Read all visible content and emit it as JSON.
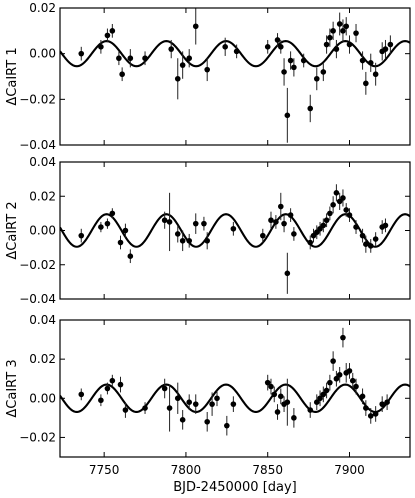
{
  "chart_data": [
    {
      "type": "scatter",
      "ylabel": "ΔCaIRT 1",
      "xlim": [
        7723,
        7937
      ],
      "ylim": [
        -0.04,
        0.02
      ],
      "yticks": [
        -0.04,
        -0.02,
        0.0,
        0.02
      ],
      "yticklabels": [
        "−0.04",
        "−0.02",
        "0.00",
        "0.02"
      ],
      "model": {
        "amplitude": 0.0055,
        "period": 36.5,
        "phase_peak": 7788
      },
      "series": [
        {
          "points": [
            {
              "x": 7736,
              "y": 0.0,
              "err": 0.003
            },
            {
              "x": 7748,
              "y": 0.003,
              "err": 0.003
            },
            {
              "x": 7752,
              "y": 0.008,
              "err": 0.003
            },
            {
              "x": 7755,
              "y": 0.01,
              "err": 0.003
            },
            {
              "x": 7759,
              "y": -0.002,
              "err": 0.003
            },
            {
              "x": 7761,
              "y": -0.009,
              "err": 0.003
            },
            {
              "x": 7766,
              "y": -0.002,
              "err": 0.004
            },
            {
              "x": 7775,
              "y": -0.002,
              "err": 0.003
            },
            {
              "x": 7791,
              "y": 0.002,
              "err": 0.004
            },
            {
              "x": 7795,
              "y": -0.011,
              "err": 0.009
            },
            {
              "x": 7798,
              "y": -0.005,
              "err": 0.006
            },
            {
              "x": 7802,
              "y": -0.002,
              "err": 0.004
            },
            {
              "x": 7806,
              "y": 0.012,
              "err": 0.008
            },
            {
              "x": 7813,
              "y": -0.007,
              "err": 0.005
            },
            {
              "x": 7824,
              "y": 0.003,
              "err": 0.004
            },
            {
              "x": 7831,
              "y": 0.001,
              "err": 0.003
            },
            {
              "x": 7850,
              "y": 0.003,
              "err": 0.003
            },
            {
              "x": 7856,
              "y": 0.006,
              "err": 0.003
            },
            {
              "x": 7858,
              "y": 0.003,
              "err": 0.003
            },
            {
              "x": 7860,
              "y": -0.008,
              "err": 0.006
            },
            {
              "x": 7862,
              "y": -0.027,
              "err": 0.012
            },
            {
              "x": 7864,
              "y": -0.003,
              "err": 0.004
            },
            {
              "x": 7866,
              "y": -0.006,
              "err": 0.004
            },
            {
              "x": 7872,
              "y": -0.003,
              "err": 0.003
            },
            {
              "x": 7876,
              "y": -0.024,
              "err": 0.006
            },
            {
              "x": 7880,
              "y": -0.011,
              "err": 0.005
            },
            {
              "x": 7884,
              "y": -0.008,
              "err": 0.004
            },
            {
              "x": 7886,
              "y": 0.004,
              "err": 0.004
            },
            {
              "x": 7888,
              "y": 0.007,
              "err": 0.004
            },
            {
              "x": 7890,
              "y": 0.01,
              "err": 0.004
            },
            {
              "x": 7892,
              "y": 0.002,
              "err": 0.004
            },
            {
              "x": 7894,
              "y": 0.013,
              "err": 0.005
            },
            {
              "x": 7896,
              "y": 0.01,
              "err": 0.005
            },
            {
              "x": 7898,
              "y": 0.012,
              "err": 0.004
            },
            {
              "x": 7900,
              "y": 0.004,
              "err": 0.004
            },
            {
              "x": 7904,
              "y": 0.009,
              "err": 0.004
            },
            {
              "x": 7908,
              "y": -0.003,
              "err": 0.004
            },
            {
              "x": 7910,
              "y": -0.013,
              "err": 0.005
            },
            {
              "x": 7913,
              "y": -0.004,
              "err": 0.004
            },
            {
              "x": 7916,
              "y": -0.009,
              "err": 0.005
            },
            {
              "x": 7920,
              "y": 0.001,
              "err": 0.004
            },
            {
              "x": 7922,
              "y": 0.002,
              "err": 0.004
            },
            {
              "x": 7925,
              "y": 0.004,
              "err": 0.004
            }
          ]
        }
      ]
    },
    {
      "type": "scatter",
      "ylabel": "ΔCaIRT 2",
      "xlim": [
        7723,
        7937
      ],
      "ylim": [
        -0.04,
        0.04
      ],
      "yticks": [
        -0.04,
        -0.02,
        0.0,
        0.02,
        0.04
      ],
      "yticklabels": [
        "−0.04",
        "−0.02",
        "0.00",
        "0.02",
        "0.04"
      ],
      "model": {
        "amplitude": 0.0095,
        "period": 36.5,
        "phase_peak": 7788
      },
      "series": [
        {
          "points": [
            {
              "x": 7736,
              "y": -0.003,
              "err": 0.004
            },
            {
              "x": 7748,
              "y": 0.002,
              "err": 0.003
            },
            {
              "x": 7752,
              "y": 0.004,
              "err": 0.003
            },
            {
              "x": 7755,
              "y": 0.01,
              "err": 0.003
            },
            {
              "x": 7760,
              "y": -0.007,
              "err": 0.004
            },
            {
              "x": 7763,
              "y": 0.0,
              "err": 0.004
            },
            {
              "x": 7766,
              "y": -0.015,
              "err": 0.004
            },
            {
              "x": 7787,
              "y": 0.006,
              "err": 0.005
            },
            {
              "x": 7790,
              "y": 0.005,
              "err": 0.017
            },
            {
              "x": 7795,
              "y": -0.002,
              "err": 0.005
            },
            {
              "x": 7798,
              "y": -0.006,
              "err": 0.006
            },
            {
              "x": 7802,
              "y": -0.006,
              "err": 0.004
            },
            {
              "x": 7806,
              "y": 0.004,
              "err": 0.006
            },
            {
              "x": 7811,
              "y": 0.004,
              "err": 0.004
            },
            {
              "x": 7813,
              "y": -0.006,
              "err": 0.005
            },
            {
              "x": 7829,
              "y": 0.001,
              "err": 0.004
            },
            {
              "x": 7847,
              "y": -0.003,
              "err": 0.004
            },
            {
              "x": 7852,
              "y": 0.006,
              "err": 0.005
            },
            {
              "x": 7855,
              "y": 0.005,
              "err": 0.004
            },
            {
              "x": 7858,
              "y": 0.014,
              "err": 0.008
            },
            {
              "x": 7860,
              "y": 0.004,
              "err": 0.005
            },
            {
              "x": 7862,
              "y": -0.025,
              "err": 0.012
            },
            {
              "x": 7864,
              "y": 0.009,
              "err": 0.004
            },
            {
              "x": 7866,
              "y": -0.002,
              "err": 0.004
            },
            {
              "x": 7876,
              "y": -0.007,
              "err": 0.004
            },
            {
              "x": 7878,
              "y": -0.003,
              "err": 0.004
            },
            {
              "x": 7880,
              "y": -0.001,
              "err": 0.004
            },
            {
              "x": 7882,
              "y": 0.001,
              "err": 0.004
            },
            {
              "x": 7884,
              "y": 0.003,
              "err": 0.004
            },
            {
              "x": 7886,
              "y": 0.006,
              "err": 0.004
            },
            {
              "x": 7888,
              "y": 0.01,
              "err": 0.004
            },
            {
              "x": 7890,
              "y": 0.015,
              "err": 0.005
            },
            {
              "x": 7892,
              "y": 0.022,
              "err": 0.005
            },
            {
              "x": 7894,
              "y": 0.017,
              "err": 0.005
            },
            {
              "x": 7896,
              "y": 0.019,
              "err": 0.005
            },
            {
              "x": 7898,
              "y": 0.012,
              "err": 0.004
            },
            {
              "x": 7900,
              "y": 0.009,
              "err": 0.004
            },
            {
              "x": 7904,
              "y": 0.002,
              "err": 0.004
            },
            {
              "x": 7908,
              "y": -0.003,
              "err": 0.004
            },
            {
              "x": 7910,
              "y": -0.008,
              "err": 0.005
            },
            {
              "x": 7913,
              "y": -0.009,
              "err": 0.004
            },
            {
              "x": 7916,
              "y": -0.005,
              "err": 0.004
            },
            {
              "x": 7920,
              "y": 0.002,
              "err": 0.004
            },
            {
              "x": 7922,
              "y": 0.003,
              "err": 0.004
            }
          ]
        }
      ]
    },
    {
      "type": "scatter",
      "ylabel": "ΔCaIRT 3",
      "xlabel": "BJD-2450000 [day]",
      "xlim": [
        7723,
        7937
      ],
      "ylim": [
        -0.03,
        0.04
      ],
      "xticks": [
        7750,
        7800,
        7850,
        7900
      ],
      "xticklabels": [
        "7750",
        "7800",
        "7850",
        "7900"
      ],
      "yticks": [
        -0.02,
        0.0,
        0.02,
        0.04
      ],
      "yticklabels": [
        "−0.02",
        "0.00",
        "0.02",
        "0.04"
      ],
      "model": {
        "amplitude": 0.007,
        "period": 36.5,
        "phase_peak": 7788
      },
      "series": [
        {
          "points": [
            {
              "x": 7736,
              "y": 0.002,
              "err": 0.003
            },
            {
              "x": 7748,
              "y": -0.001,
              "err": 0.003
            },
            {
              "x": 7752,
              "y": 0.005,
              "err": 0.003
            },
            {
              "x": 7755,
              "y": 0.009,
              "err": 0.003
            },
            {
              "x": 7760,
              "y": 0.007,
              "err": 0.004
            },
            {
              "x": 7763,
              "y": -0.006,
              "err": 0.004
            },
            {
              "x": 7775,
              "y": -0.005,
              "err": 0.003
            },
            {
              "x": 7787,
              "y": 0.005,
              "err": 0.005
            },
            {
              "x": 7790,
              "y": -0.005,
              "err": 0.012
            },
            {
              "x": 7795,
              "y": 0.0,
              "err": 0.008
            },
            {
              "x": 7798,
              "y": -0.011,
              "err": 0.005
            },
            {
              "x": 7802,
              "y": -0.002,
              "err": 0.004
            },
            {
              "x": 7806,
              "y": -0.003,
              "err": 0.005
            },
            {
              "x": 7813,
              "y": -0.012,
              "err": 0.005
            },
            {
              "x": 7816,
              "y": -0.003,
              "err": 0.006
            },
            {
              "x": 7819,
              "y": 0.0,
              "err": 0.004
            },
            {
              "x": 7825,
              "y": -0.014,
              "err": 0.005
            },
            {
              "x": 7829,
              "y": -0.003,
              "err": 0.004
            },
            {
              "x": 7850,
              "y": 0.008,
              "err": 0.004
            },
            {
              "x": 7852,
              "y": 0.006,
              "err": 0.004
            },
            {
              "x": 7854,
              "y": 0.002,
              "err": 0.004
            },
            {
              "x": 7856,
              "y": -0.007,
              "err": 0.004
            },
            {
              "x": 7858,
              "y": 0.001,
              "err": 0.004
            },
            {
              "x": 7860,
              "y": -0.003,
              "err": 0.004
            },
            {
              "x": 7862,
              "y": -0.002,
              "err": 0.012
            },
            {
              "x": 7866,
              "y": -0.01,
              "err": 0.005
            },
            {
              "x": 7876,
              "y": -0.006,
              "err": 0.004
            },
            {
              "x": 7880,
              "y": -0.002,
              "err": 0.004
            },
            {
              "x": 7882,
              "y": 0.0,
              "err": 0.004
            },
            {
              "x": 7884,
              "y": 0.002,
              "err": 0.004
            },
            {
              "x": 7886,
              "y": 0.004,
              "err": 0.004
            },
            {
              "x": 7888,
              "y": 0.008,
              "err": 0.004
            },
            {
              "x": 7890,
              "y": 0.019,
              "err": 0.005
            },
            {
              "x": 7892,
              "y": 0.01,
              "err": 0.004
            },
            {
              "x": 7894,
              "y": 0.012,
              "err": 0.004
            },
            {
              "x": 7896,
              "y": 0.031,
              "err": 0.005
            },
            {
              "x": 7898,
              "y": 0.013,
              "err": 0.005
            },
            {
              "x": 7900,
              "y": 0.014,
              "err": 0.004
            },
            {
              "x": 7902,
              "y": 0.009,
              "err": 0.004
            },
            {
              "x": 7904,
              "y": 0.006,
              "err": 0.004
            },
            {
              "x": 7908,
              "y": 0.001,
              "err": 0.004
            },
            {
              "x": 7910,
              "y": -0.005,
              "err": 0.004
            },
            {
              "x": 7913,
              "y": -0.009,
              "err": 0.004
            },
            {
              "x": 7916,
              "y": -0.008,
              "err": 0.004
            },
            {
              "x": 7920,
              "y": -0.003,
              "err": 0.004
            },
            {
              "x": 7923,
              "y": -0.002,
              "err": 0.004
            }
          ]
        }
      ]
    }
  ]
}
